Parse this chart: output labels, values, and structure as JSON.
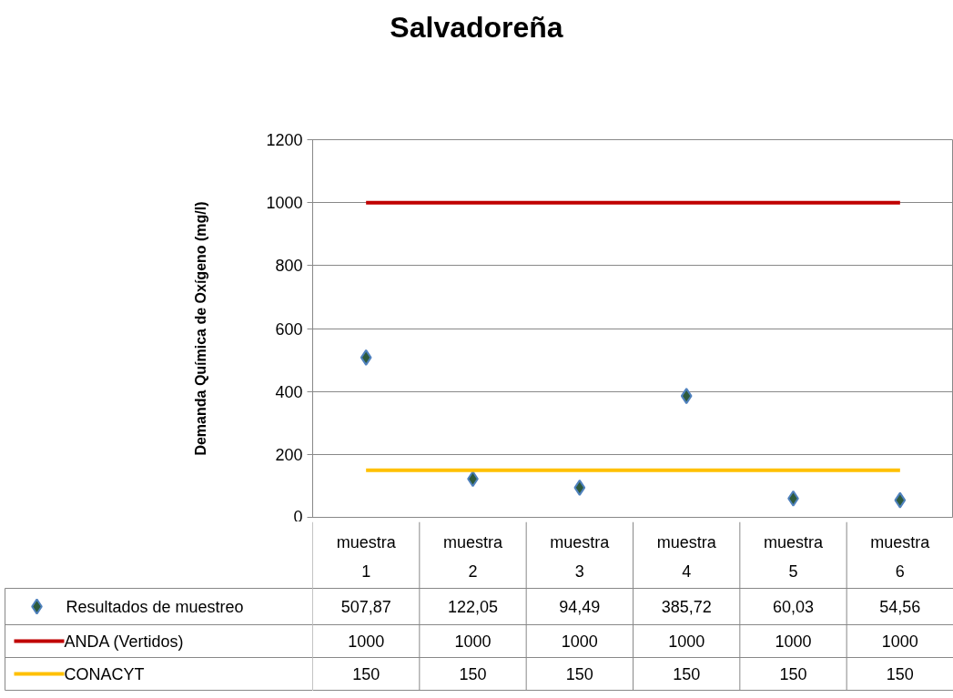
{
  "chart_data": {
    "type": "scatter",
    "title": "Salvadoreña",
    "ylabel": "Demanda Química de Oxígeno (mg/l)",
    "categories": [
      "muestra 1",
      "muestra 2",
      "muestra 3",
      "muestra 4",
      "muestra 5",
      "muestra 6"
    ],
    "ylim": [
      0,
      1200
    ],
    "yticks": [
      0,
      200,
      400,
      600,
      800,
      1000,
      1200
    ],
    "grid": "y",
    "legend": "bottom",
    "series": [
      {
        "name": "Resultados de muestreo",
        "marker": "diamond",
        "color": "#2e5a3c",
        "values": [
          507.87,
          122.05,
          94.49,
          385.72,
          60.03,
          54.56
        ],
        "value_labels": [
          "507,87",
          "122,05",
          "94,49",
          "385,72",
          "60,03",
          "54,56"
        ]
      },
      {
        "name": "ANDA (Vertidos)",
        "type": "line",
        "color": "#c00000",
        "values": [
          1000,
          1000,
          1000,
          1000,
          1000,
          1000
        ],
        "value_labels": [
          "1000",
          "1000",
          "1000",
          "1000",
          "1000",
          "1000"
        ]
      },
      {
        "name": "CONACYT",
        "type": "line",
        "color": "#ffc000",
        "values": [
          150,
          150,
          150,
          150,
          150,
          150
        ],
        "value_labels": [
          "150",
          "150",
          "150",
          "150",
          "150",
          "150"
        ]
      }
    ]
  }
}
